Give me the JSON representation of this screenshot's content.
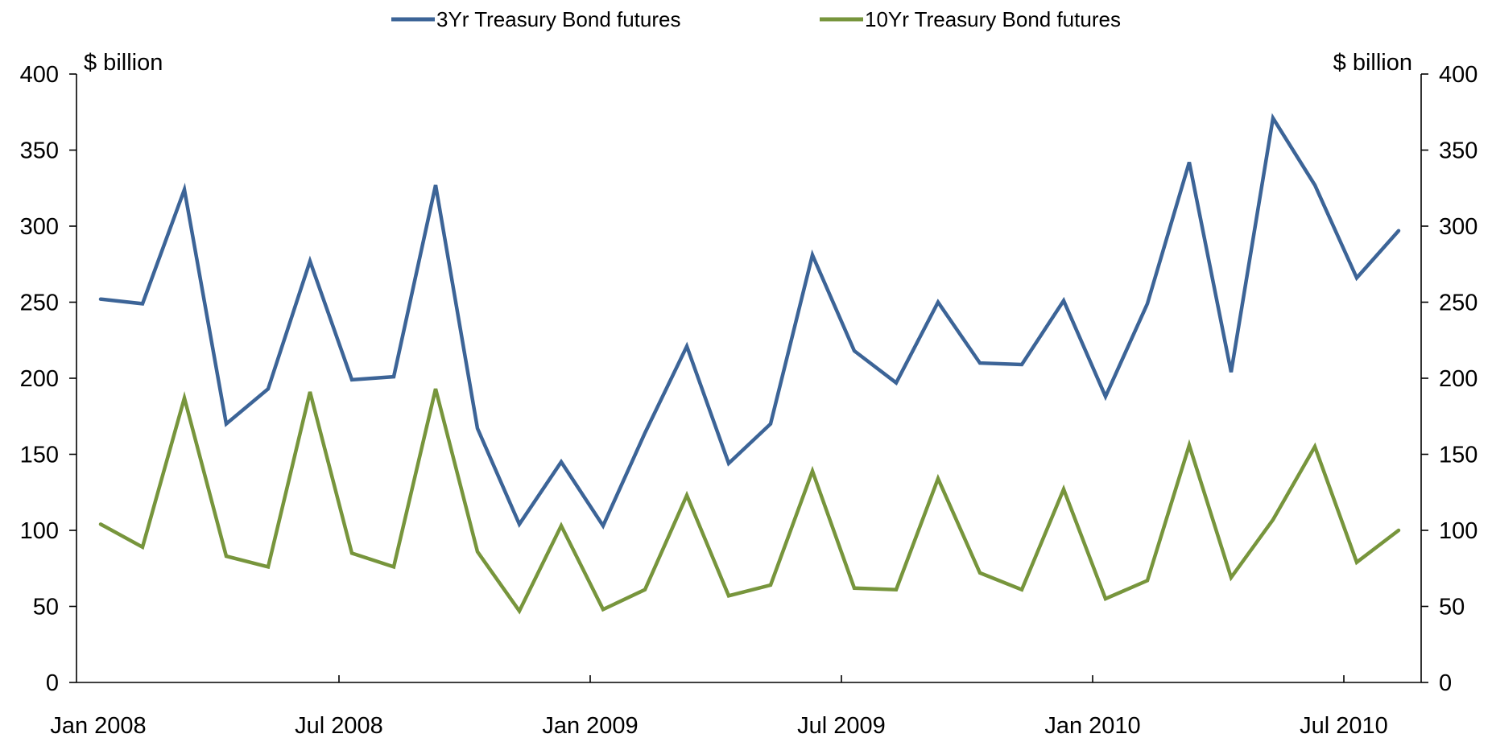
{
  "chart_data": {
    "type": "line",
    "title": "",
    "xlabel": "",
    "ylabel_left": "$ billion",
    "ylabel_right": "$ billion",
    "ylim": [
      0,
      400
    ],
    "yticks": [
      0,
      50,
      100,
      150,
      200,
      250,
      300,
      350,
      400
    ],
    "grid": false,
    "legend_position": "top-center",
    "x_tick_labels": [
      "Jan 2008",
      "Jul 2008",
      "Jan 2009",
      "Jul 2009",
      "Jan 2010",
      "Jul 2010"
    ],
    "x": [
      "2008-01",
      "2008-02",
      "2008-03",
      "2008-04",
      "2008-05",
      "2008-06",
      "2008-07",
      "2008-08",
      "2008-09",
      "2008-10",
      "2008-11",
      "2008-12",
      "2009-01",
      "2009-02",
      "2009-03",
      "2009-04",
      "2009-05",
      "2009-06",
      "2009-07",
      "2009-08",
      "2009-09",
      "2009-10",
      "2009-11",
      "2009-12",
      "2010-01",
      "2010-02",
      "2010-03",
      "2010-04",
      "2010-05",
      "2010-06",
      "2010-07",
      "2010-08"
    ],
    "series": [
      {
        "name": "3Yr Treasury Bond futures",
        "color": "#3c6497",
        "values": [
          252,
          249,
          324,
          170,
          193,
          277,
          199,
          201,
          327,
          167,
          104,
          145,
          103,
          164,
          221,
          144,
          170,
          281,
          218,
          197,
          250,
          210,
          209,
          251,
          188,
          249,
          342,
          204,
          371,
          327,
          266,
          297
        ]
      },
      {
        "name": "10Yr Treasury Bond futures",
        "color": "#77953c",
        "values": [
          104,
          89,
          187,
          83,
          76,
          191,
          85,
          76,
          193,
          86,
          47,
          103,
          48,
          61,
          123,
          57,
          64,
          139,
          62,
          61,
          134,
          72,
          61,
          127,
          55,
          67,
          156,
          69,
          107,
          155,
          79,
          100
        ]
      }
    ]
  }
}
